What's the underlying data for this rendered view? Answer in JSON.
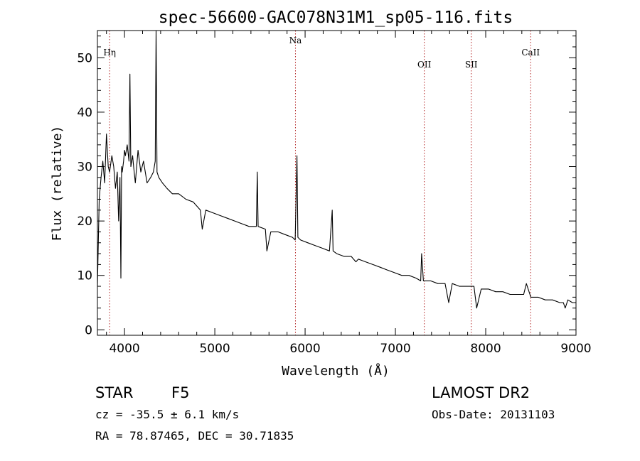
{
  "chart_data": {
    "type": "line",
    "title": "spec-56600-GAC078N31M1_sp05-116.fits",
    "xlabel": "Wavelength (Å)",
    "ylabel": "Flux (relative)",
    "xlim": [
      3700,
      9000
    ],
    "ylim": [
      -1,
      55
    ],
    "xticks": [
      4000,
      5000,
      6000,
      7000,
      8000,
      9000
    ],
    "yticks": [
      0,
      10,
      20,
      30,
      40,
      50
    ],
    "line_color": "#000000",
    "marker_color": "#b22222",
    "grid": false,
    "series": [
      {
        "x": [
          3700,
          3720,
          3740,
          3760,
          3780,
          3800,
          3820,
          3835,
          3860,
          3880,
          3900,
          3920,
          3935,
          3950,
          3960,
          3968,
          3975,
          3990,
          4000,
          4010,
          4030,
          4050,
          4060,
          4070,
          4090,
          4101,
          4120,
          4150,
          4180,
          4210,
          4250,
          4290,
          4320,
          4340,
          4350,
          4360,
          4380,
          4420,
          4470,
          4530,
          4600,
          4680,
          4760,
          4840,
          4861,
          4900,
          4980,
          5060,
          5140,
          5220,
          5300,
          5380,
          5460,
          5470,
          5480,
          5560,
          5577,
          5620,
          5700,
          5780,
          5860,
          5890,
          5910,
          5920,
          5950,
          6030,
          6110,
          6190,
          6270,
          6300,
          6310,
          6350,
          6430,
          6510,
          6563,
          6590,
          6670,
          6750,
          6830,
          6910,
          6990,
          7070,
          7150,
          7230,
          7280,
          7290,
          7310,
          7390,
          7470,
          7550,
          7590,
          7630,
          7710,
          7790,
          7870,
          7900,
          7950,
          8030,
          8110,
          8190,
          8270,
          8350,
          8420,
          8450,
          8500,
          8580,
          8660,
          8740,
          8820,
          8860,
          8880,
          8910,
          8960,
          9000
        ],
        "y": [
          8,
          24,
          28,
          31,
          27,
          36,
          30,
          29,
          32,
          30,
          26,
          29,
          20,
          28,
          9.5,
          30,
          29,
          31,
          33,
          32,
          34,
          31,
          47,
          30,
          32,
          30,
          27,
          33,
          29,
          31,
          27,
          28,
          29,
          31,
          55,
          29,
          28,
          27,
          26,
          25,
          25,
          24,
          23.5,
          22,
          18.5,
          22,
          21.5,
          21,
          20.5,
          20,
          19.5,
          19,
          19,
          29,
          19,
          18.5,
          14.5,
          18,
          18,
          17.5,
          17,
          16.5,
          32,
          17,
          16.5,
          16,
          15.5,
          15,
          14.5,
          22,
          14.5,
          14,
          13.5,
          13.5,
          12.5,
          13,
          12.5,
          12,
          11.5,
          11,
          10.5,
          10,
          10,
          9.5,
          9,
          14,
          9,
          9,
          8.5,
          8.5,
          5,
          8.5,
          8,
          8,
          8,
          4,
          7.5,
          7.5,
          7,
          7,
          6.5,
          6.5,
          6.5,
          8.5,
          6,
          6,
          5.5,
          5.5,
          5,
          5,
          4,
          5.5,
          5,
          5
        ]
      }
    ],
    "reference_lines": [
      {
        "label": "Hη",
        "wavelength": 3835
      },
      {
        "label": "Na",
        "wavelength": 5893
      },
      {
        "label": "OII",
        "wavelength": 7320
      },
      {
        "label": "SII",
        "wavelength": 7840
      },
      {
        "label": "CaII",
        "wavelength": 8498
      }
    ]
  },
  "info": {
    "object_class": "STAR",
    "subclass": "F5",
    "velocity": "cz = -35.5 ± 6.1 km/s",
    "coords": "RA =  78.87465, DEC =  30.71835",
    "survey": "LAMOST DR2",
    "obs_date": "Obs-Date: 20131103"
  }
}
